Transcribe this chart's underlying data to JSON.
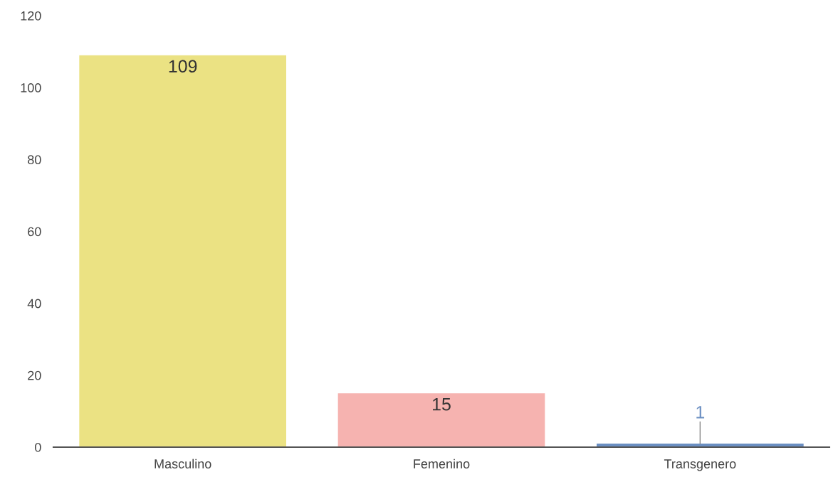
{
  "chart_data": {
    "type": "bar",
    "categories": [
      "Masculino",
      "Femenino",
      "Transgenero"
    ],
    "values": [
      109,
      15,
      1
    ],
    "colors": [
      "#ebe283",
      "#f6b3b0",
      "#6b8fc2"
    ],
    "ylim": [
      0,
      120
    ],
    "yticks": [
      0,
      20,
      40,
      60,
      80,
      100,
      120
    ],
    "grid": false,
    "data_labels": true
  }
}
